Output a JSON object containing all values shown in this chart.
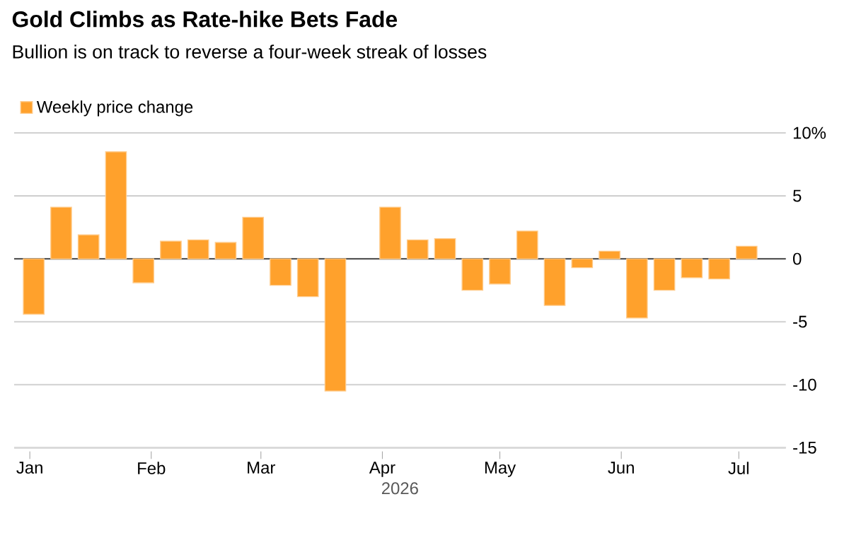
{
  "chart_data": {
    "type": "bar",
    "title": "Gold Climbs as Rate-hike Bets Fade",
    "subtitle": "Bullion is on track to reverse a four-week streak of losses",
    "xlabel": "2026",
    "x": [
      "2026-01-02",
      "2026-01-09",
      "2026-01-16",
      "2026-01-23",
      "2026-01-30",
      "2026-02-06",
      "2026-02-13",
      "2026-02-20",
      "2026-02-27",
      "2026-03-06",
      "2026-03-13",
      "2026-03-20",
      "2026-03-27",
      "2026-04-03",
      "2026-04-10",
      "2026-04-17",
      "2026-04-24",
      "2026-05-01",
      "2026-05-08",
      "2026-05-15",
      "2026-05-22",
      "2026-05-29",
      "2026-06-05",
      "2026-06-12",
      "2026-06-19",
      "2026-06-26",
      "2026-07-03"
    ],
    "series": [
      {
        "name": "Weekly price change",
        "color": "#ffa12c",
        "values": [
          -4.4,
          4.1,
          1.9,
          8.5,
          -1.9,
          1.4,
          1.5,
          1.3,
          3.3,
          -2.1,
          -3.0,
          -10.5,
          null,
          4.1,
          1.5,
          1.6,
          -2.5,
          -2.0,
          2.2,
          -3.7,
          -0.7,
          0.6,
          -4.7,
          -2.5,
          -1.5,
          -1.6,
          1.0
        ]
      }
    ],
    "xlim": [
      "2025-12-28",
      "2026-07-13"
    ],
    "xticks": [
      {
        "value": "2026-01-01",
        "label": "Jan"
      },
      {
        "value": "2026-02-01",
        "label": "Feb"
      },
      {
        "value": "2026-03-01",
        "label": "Mar"
      },
      {
        "value": "2026-04-01",
        "label": "Apr"
      },
      {
        "value": "2026-05-01",
        "label": "May"
      },
      {
        "value": "2026-06-01",
        "label": "Jun"
      },
      {
        "value": "2026-07-01",
        "label": "Jul"
      }
    ],
    "ylim": [
      -15,
      10
    ],
    "yticks": [
      {
        "value": 10,
        "label": "10%"
      },
      5,
      0,
      -5,
      -10,
      -15
    ],
    "grid": "y",
    "legend": "top left"
  }
}
